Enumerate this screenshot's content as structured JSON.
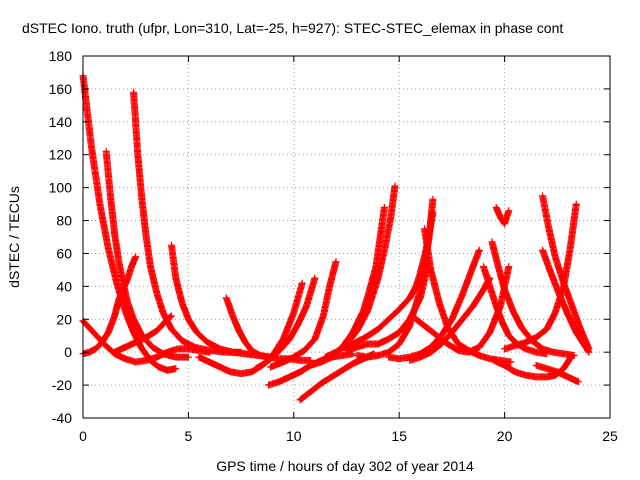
{
  "chart_data": {
    "type": "scatter",
    "title": "dSTEC Iono. truth (ufpr, Lon=310, Lat=-25, h=927): STEC-STEC_elemax in phase cont",
    "xlabel": "GPS time / hours of day 302 of year 2014",
    "ylabel": "dSTEC  / TECUs",
    "xlim": [
      0,
      25
    ],
    "ylim": [
      -40,
      180
    ],
    "xticks": [
      0,
      5,
      10,
      15,
      20,
      25
    ],
    "yticks": [
      -40,
      -20,
      0,
      20,
      40,
      60,
      80,
      100,
      120,
      140,
      160,
      180
    ],
    "grid": true,
    "marker": "plus",
    "color": "#ff0000",
    "series": [
      {
        "x": [
          0.0,
          0.4,
          0.8,
          1.2,
          1.6,
          2.0,
          2.4,
          2.8,
          3.2,
          3.6,
          4.0,
          4.4
        ],
        "y": [
          168,
          125,
          90,
          63,
          42,
          25,
          12,
          2,
          -5,
          -9,
          -11,
          -10
        ]
      },
      {
        "x": [
          1.1,
          1.3,
          1.5,
          1.7,
          1.9,
          2.1,
          2.4,
          2.8,
          3.3,
          3.8,
          4.4,
          5.0
        ],
        "y": [
          122,
          95,
          72,
          55,
          42,
          31,
          20,
          10,
          3,
          -1,
          -3,
          -3
        ]
      },
      {
        "x": [
          2.4,
          2.6,
          2.8,
          3.0,
          3.2,
          3.5,
          3.8,
          4.2,
          4.7,
          5.3,
          6.0,
          6.8,
          7.5
        ],
        "y": [
          158,
          120,
          92,
          70,
          52,
          36,
          24,
          14,
          7,
          3,
          1,
          0,
          0
        ]
      },
      {
        "x": [
          4.2,
          4.4,
          4.7,
          5.0,
          5.4,
          5.9,
          6.5,
          7.1,
          7.7,
          8.3,
          8.9
        ],
        "y": [
          65,
          45,
          30,
          20,
          12,
          6,
          2,
          0,
          -1,
          -2,
          -3
        ]
      },
      {
        "x": [
          0.0,
          0.3,
          0.6,
          0.9,
          1.2,
          1.5,
          1.7,
          1.9,
          2.1,
          2.3,
          2.5
        ],
        "y": [
          -1,
          0,
          2,
          6,
          12,
          22,
          32,
          38,
          44,
          52,
          58
        ]
      },
      {
        "x": [
          0.0,
          0.5,
          1.0,
          1.5,
          2.0,
          2.5,
          3.0,
          3.5,
          4.0,
          4.5,
          5.0,
          5.5,
          6.0
        ],
        "y": [
          19,
          12,
          5,
          -1,
          -4,
          -6,
          -5,
          -3,
          0,
          2,
          2,
          1,
          0
        ]
      },
      {
        "x": [
          1.5,
          2.0,
          2.5,
          3.0,
          3.5,
          3.8,
          4.0,
          4.2
        ],
        "y": [
          0,
          3,
          6,
          9,
          13,
          17,
          20,
          22
        ]
      },
      {
        "x": [
          6.8,
          7.1,
          7.4,
          7.7,
          8.0,
          8.4,
          8.8,
          9.3,
          9.8,
          10.3,
          10.8
        ],
        "y": [
          33,
          22,
          13,
          6,
          1,
          -2,
          -3,
          -4,
          -4,
          -5,
          -5
        ]
      },
      {
        "x": [
          5.5,
          6.0,
          6.5,
          7.0,
          7.5,
          8.0,
          8.5,
          9.0,
          9.5,
          10.0,
          10.4
        ],
        "y": [
          -3,
          -6,
          -9,
          -12,
          -13,
          -12,
          -8,
          -2,
          8,
          24,
          42
        ]
      },
      {
        "x": [
          8.8,
          9.3,
          9.8,
          10.3,
          10.8,
          11.3,
          11.8,
          12.3,
          12.8
        ],
        "y": [
          -20,
          -18,
          -15,
          -12,
          -8,
          -5,
          -3,
          -2,
          -1
        ]
      },
      {
        "x": [
          8.2,
          8.6,
          9.0,
          9.4,
          9.8,
          10.2,
          10.6,
          11.0
        ],
        "y": [
          -10,
          -7,
          -3,
          2,
          8,
          17,
          28,
          45
        ]
      },
      {
        "x": [
          8.9,
          9.5,
          10.0,
          10.5,
          11.0,
          11.4,
          11.7,
          12.0
        ],
        "y": [
          -9,
          -6,
          -3,
          1,
          8,
          22,
          40,
          55
        ]
      },
      {
        "x": [
          10.3,
          10.8,
          11.3,
          11.8,
          12.3,
          12.8,
          13.3,
          13.8
        ],
        "y": [
          -29,
          -24,
          -19,
          -15,
          -11,
          -7,
          -4,
          -1
        ]
      },
      {
        "x": [
          10.8,
          11.3,
          11.8,
          12.3,
          12.8,
          13.3,
          13.6,
          13.9,
          14.1,
          14.3
        ],
        "y": [
          -8,
          -6,
          -3,
          3,
          12,
          25,
          38,
          52,
          70,
          88
        ]
      },
      {
        "x": [
          11.5,
          12.0,
          12.5,
          13.0,
          13.5,
          14.0,
          14.3,
          14.6,
          14.8
        ],
        "y": [
          -3,
          0,
          5,
          13,
          25,
          45,
          62,
          82,
          101
        ]
      },
      {
        "x": [
          13.0,
          13.5,
          14.0,
          14.5,
          15.0,
          15.5,
          16.0,
          16.4,
          16.6
        ],
        "y": [
          -2,
          -3,
          -2,
          0,
          5,
          16,
          38,
          68,
          93
        ]
      },
      {
        "x": [
          12.2,
          12.8,
          13.4,
          14.0,
          14.5,
          15.0,
          15.5,
          15.8,
          16.0,
          16.2,
          16.4,
          16.6
        ],
        "y": [
          2,
          5,
          9,
          14,
          20,
          26,
          33,
          40,
          48,
          58,
          70,
          85
        ]
      },
      {
        "x": [
          12.5,
          13.0,
          13.5,
          14.0,
          14.5,
          15.0,
          15.5,
          16.0,
          16.4
        ],
        "y": [
          1,
          3,
          5,
          5,
          8,
          12,
          20,
          33,
          55
        ]
      },
      {
        "x": [
          14.5,
          15.0,
          15.5,
          16.0,
          16.5,
          17.0,
          17.5,
          18.0,
          18.5,
          18.8
        ],
        "y": [
          -3,
          -4,
          -3,
          -1,
          3,
          10,
          20,
          35,
          52,
          62
        ]
      },
      {
        "x": [
          15.5,
          16.0,
          16.5,
          17.0,
          17.5,
          18.0,
          18.5,
          19.0,
          19.3
        ],
        "y": [
          -5,
          -3,
          0,
          5,
          12,
          20,
          28,
          38,
          45
        ]
      },
      {
        "x": [
          15.8,
          16.3,
          16.8,
          17.3,
          17.8,
          18.3,
          18.8,
          19.3,
          19.8,
          20.2
        ],
        "y": [
          20,
          15,
          10,
          5,
          1,
          0,
          3,
          12,
          28,
          52
        ]
      },
      {
        "x": [
          16.2,
          16.5,
          16.9,
          17.3,
          17.8,
          18.3,
          18.8,
          19.3,
          19.8,
          20.3
        ],
        "y": [
          75,
          50,
          30,
          15,
          5,
          1,
          -2,
          -4,
          -5,
          -6
        ]
      },
      {
        "x": [
          19.0,
          19.3,
          19.6,
          19.9,
          20.2,
          20.6,
          21.0,
          21.5,
          22.0
        ],
        "y": [
          52,
          40,
          28,
          18,
          10,
          5,
          2,
          0,
          -1
        ]
      },
      {
        "x": [
          19.4,
          19.7,
          20.0,
          20.4,
          20.8,
          21.3,
          21.8,
          22.3,
          22.8,
          23.3
        ],
        "y": [
          67,
          52,
          38,
          25,
          15,
          7,
          2,
          0,
          -1,
          -2
        ]
      },
      {
        "x": [
          19.5,
          20.0,
          20.5,
          21.0,
          21.5,
          22.0,
          22.4,
          22.8,
          23.2
        ],
        "y": [
          -5,
          -8,
          -12,
          -14,
          -15,
          -15,
          -14,
          -10,
          -2
        ]
      },
      {
        "x": [
          19.6,
          19.8,
          20.0,
          20.2
        ],
        "y": [
          88,
          82,
          78,
          86
        ]
      },
      {
        "x": [
          21.8,
          22.1,
          22.4,
          22.8,
          23.2,
          23.6,
          24.0
        ],
        "y": [
          95,
          75,
          58,
          42,
          28,
          14,
          2
        ]
      },
      {
        "x": [
          21.8,
          22.2,
          22.6,
          23.0,
          23.4,
          23.8,
          24.0
        ],
        "y": [
          62,
          48,
          35,
          23,
          12,
          4,
          0
        ]
      },
      {
        "x": [
          20.0,
          20.5,
          21.0,
          21.5,
          22.0,
          22.4,
          22.8,
          23.1,
          23.4
        ],
        "y": [
          2,
          4,
          6,
          9,
          14,
          24,
          40,
          62,
          90
        ]
      },
      {
        "x": [
          21.5,
          22.0,
          22.5,
          23.0,
          23.5
        ],
        "y": [
          -8,
          -10,
          -12,
          -15,
          -18
        ]
      }
    ]
  }
}
